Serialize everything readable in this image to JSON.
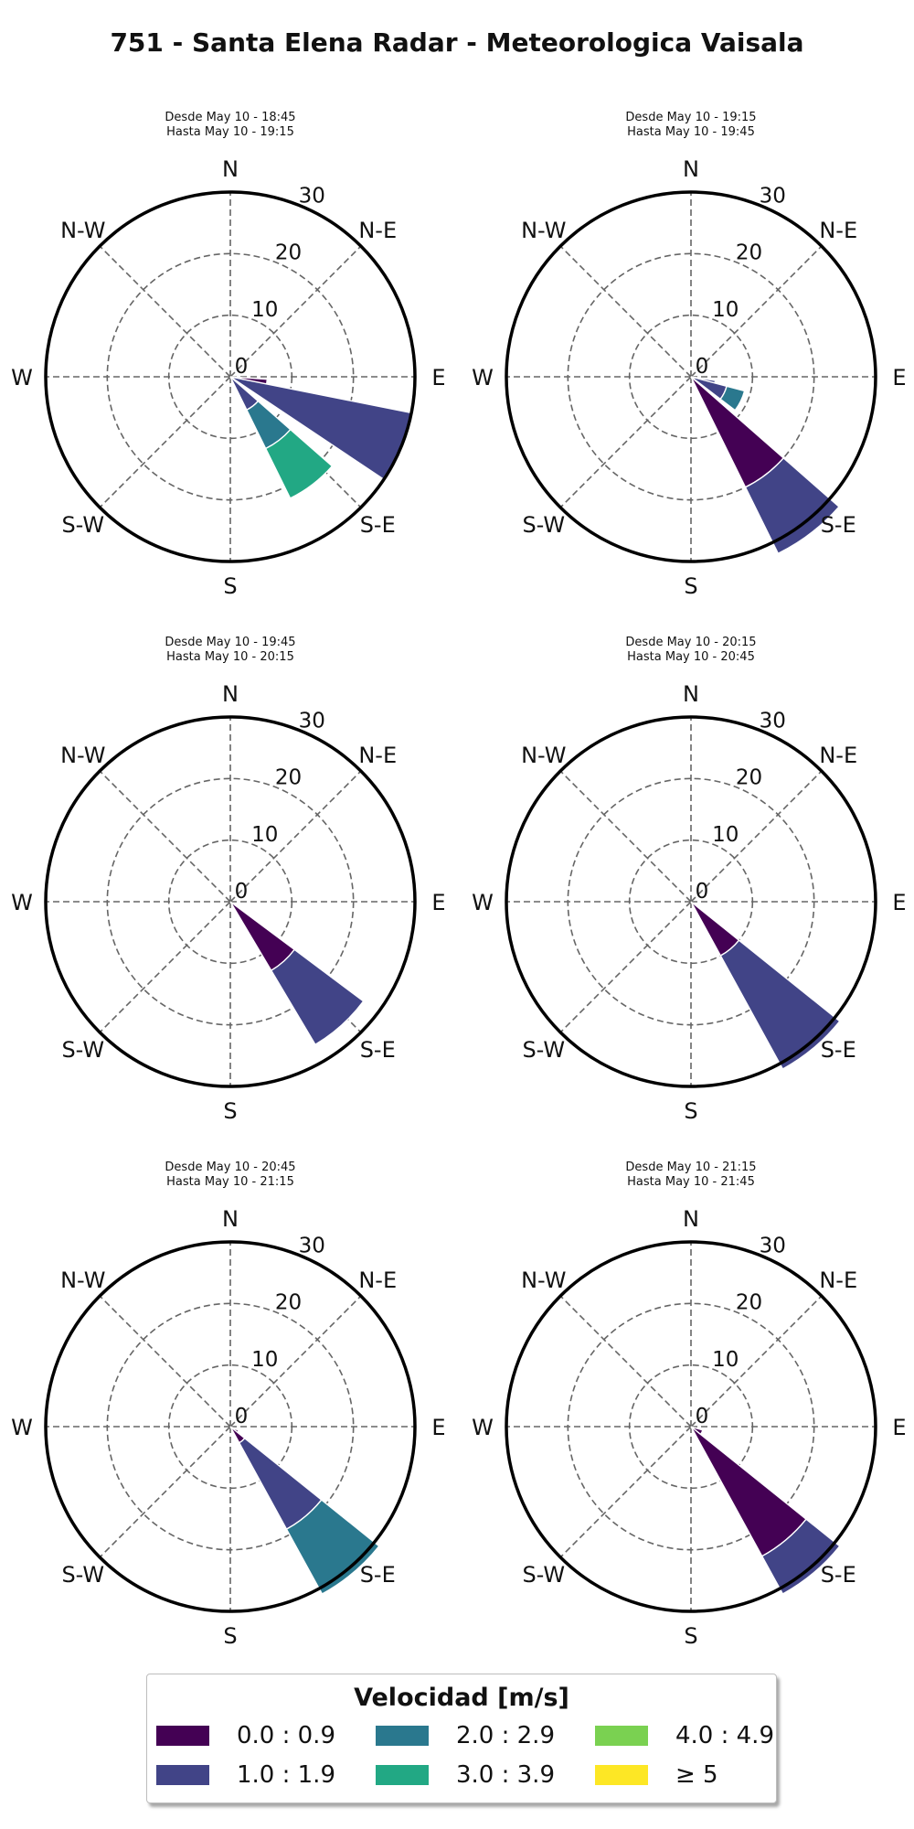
{
  "title": "751 - Santa Elena Radar - Meteorologica Vaisala",
  "chart_data": {
    "type": "windrose",
    "r_ticks": [
      0,
      10,
      20,
      30
    ],
    "rlim": [
      0,
      30
    ],
    "directions": [
      "N",
      "N-E",
      "E",
      "S-E",
      "S",
      "S-W",
      "W",
      "N-W"
    ],
    "bins": [
      "0.0 : 0.9",
      "1.0 : 1.9",
      "2.0 : 2.9",
      "3.0 : 3.9",
      "4.0 : 4.9",
      "≥ 5"
    ],
    "bin_colors": [
      "#440154",
      "#414487",
      "#2a788e",
      "#22a884",
      "#7ad151",
      "#fde725"
    ],
    "grid": true,
    "legend_position": "bottom-center",
    "panels": [
      {
        "subtitle_line1": "Desde May 10 - 18:45",
        "subtitle_line2": "Hasta May 10 - 19:15",
        "sectors": [
          {
            "direction_deg": 105,
            "segments": [
              6,
              0,
              0,
              0,
              0,
              0
            ]
          },
          {
            "direction_deg": 112.5,
            "segments": [
              0,
              30,
              0,
              0,
              0,
              0
            ]
          },
          {
            "direction_deg": 142.5,
            "segments": [
              0,
              6,
              7,
              9,
              0,
              0
            ]
          }
        ]
      },
      {
        "subtitle_line1": "Desde May 10 - 19:15",
        "subtitle_line2": "Hasta May 10 - 19:45",
        "sectors": [
          {
            "direction_deg": 110,
            "segments": [
              0,
              4,
              0,
              0,
              0,
              0
            ]
          },
          {
            "direction_deg": 116,
            "segments": [
              0,
              6,
              3,
              0,
              0,
              0
            ]
          },
          {
            "direction_deg": 142.5,
            "segments": [
              20,
              12,
              0,
              0,
              0,
              0
            ]
          }
        ]
      },
      {
        "subtitle_line1": "Desde May 10 - 19:45",
        "subtitle_line2": "Hasta May 10 - 20:15",
        "sectors": [
          {
            "direction_deg": 138,
            "segments": [
              13,
              14,
              0,
              0,
              0,
              0
            ]
          }
        ]
      },
      {
        "subtitle_line1": "Desde May 10 - 20:15",
        "subtitle_line2": "Hasta May 10 - 20:45",
        "sectors": [
          {
            "direction_deg": 140,
            "segments": [
              10,
              21,
              0,
              0,
              0,
              0
            ]
          }
        ]
      },
      {
        "subtitle_line1": "Desde May 10 - 20:45",
        "subtitle_line2": "Hasta May 10 - 21:15",
        "sectors": [
          {
            "direction_deg": 126,
            "segments": [
              1.5,
              0,
              0,
              0,
              0,
              0
            ]
          },
          {
            "direction_deg": 140,
            "segments": [
              3,
              16,
              12,
              0,
              0,
              0
            ]
          }
        ]
      },
      {
        "subtitle_line1": "Desde May 10 - 21:15",
        "subtitle_line2": "Hasta May 10 - 21:45",
        "sectors": [
          {
            "direction_deg": 118,
            "segments": [
              2,
              0,
              0,
              0,
              0,
              0
            ]
          },
          {
            "direction_deg": 140,
            "segments": [
              24,
              7,
              0,
              0,
              0,
              0
            ]
          }
        ]
      }
    ]
  },
  "legend": {
    "title": "Velocidad [m/s]",
    "items": [
      {
        "label": "0.0 : 0.9",
        "color": "#440154"
      },
      {
        "label": "1.0 : 1.9",
        "color": "#414487"
      },
      {
        "label": "2.0 : 2.9",
        "color": "#2a788e"
      },
      {
        "label": "3.0 : 3.9",
        "color": "#22a884"
      },
      {
        "label": "4.0 : 4.9",
        "color": "#7ad151"
      },
      {
        "label": "≥ 5",
        "color": "#fde725"
      }
    ]
  }
}
